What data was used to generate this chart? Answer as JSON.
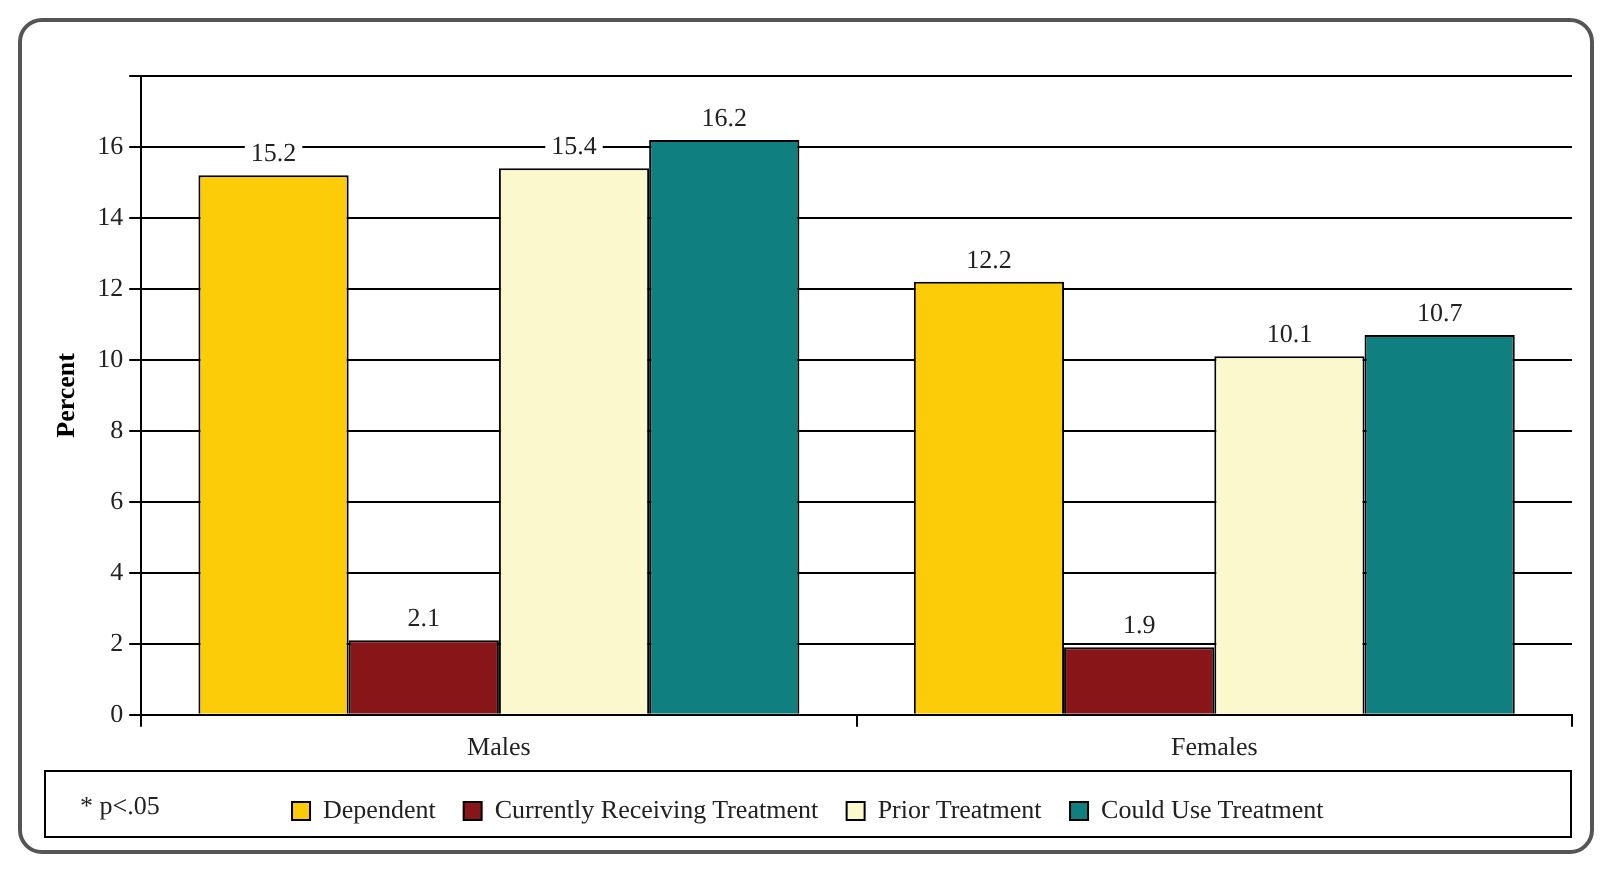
{
  "chart_data": {
    "type": "bar",
    "ylabel": "Percent",
    "categories": [
      "Males",
      "Females"
    ],
    "series": [
      {
        "name": "Dependent",
        "color": "#fccc08",
        "values": [
          15.2,
          12.2
        ]
      },
      {
        "name": "Currently Receiving Treatment",
        "color": "#881518",
        "values": [
          2.1,
          1.9
        ]
      },
      {
        "name": "Prior Treatment",
        "color": "#fbf8cd",
        "values": [
          15.4,
          10.1
        ]
      },
      {
        "name": "Could Use Treatment",
        "color": "#0f7f7f",
        "values": [
          16.2,
          10.7
        ]
      }
    ],
    "ylim": [
      0,
      18
    ],
    "yticks": [
      0,
      2,
      4,
      6,
      8,
      10,
      12,
      14,
      16,
      {
        "value": 18,
        "label": null
      }
    ],
    "grid": "y",
    "legend": "bottom",
    "data_labels": true,
    "annotations": [
      "* p<.05"
    ]
  }
}
